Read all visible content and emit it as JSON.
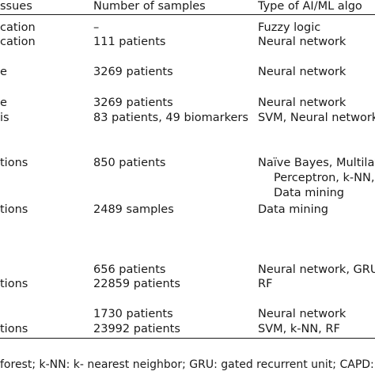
{
  "table": {
    "headers": [
      "ssues",
      "Number of samples",
      "Type of AI/ML algo"
    ],
    "rows": [
      [
        "cation",
        "–",
        "Fuzzy logic"
      ],
      [
        "cation",
        "111 patients",
        "Neural network"
      ],
      [
        "e",
        "3269 patients",
        "Neural network"
      ],
      [
        "e",
        "3269 patients",
        "Neural network"
      ],
      [
        "is",
        "83 patients, 49 biomarkers",
        "SVM, Neural network,"
      ],
      [
        "tions",
        "850 patients",
        "Naïve Bayes, Multilaye"
      ],
      [
        "",
        "",
        "Perceptron, k-NN, R"
      ],
      [
        "",
        "",
        "Data mining"
      ],
      [
        "tions",
        "2489 samples",
        "Data mining"
      ],
      [
        "",
        "656 patients",
        "Neural network, GRU"
      ],
      [
        "tions",
        "22859 patients",
        "RF"
      ],
      [
        "",
        "1730 patients",
        "Neural network"
      ],
      [
        "tions",
        "23992 patients",
        "SVM, k-NN, RF"
      ]
    ],
    "footnote": "forest; k-NN: k- nearest neighbor; GRU: gated recurrent unit; CAPD:"
  }
}
